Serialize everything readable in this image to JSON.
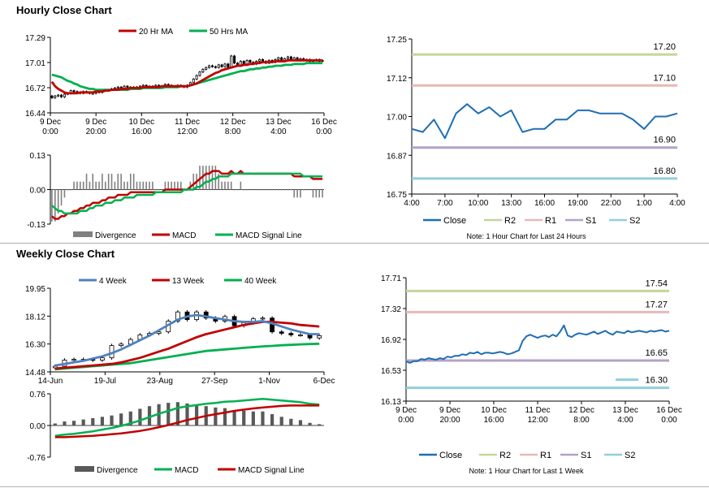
{
  "titles": {
    "hourly": "Hourly Close Chart",
    "weekly": "Weekly Close Chart"
  },
  "colors": {
    "ma20": "#c00000",
    "ma50": "#00b050",
    "close": "#1f6eb4",
    "r2": "#c3d69b",
    "r1": "#e6b9b8",
    "s1": "#b3a2c7",
    "s2": "#93cddd",
    "week4": "#4f81bd",
    "week13": "#c00000",
    "week40": "#00b050",
    "divergence": "#808080",
    "divergence_dark": "#595959",
    "macd_red": "#c00000",
    "macd_green": "#00b050"
  },
  "chart_data": [
    {
      "id": "hourly_candles",
      "type": "candlestick",
      "title": "Hourly Close Chart",
      "ylim": [
        16.44,
        17.29
      ],
      "yticks": [
        "17.29",
        "17.01",
        "16.72",
        "16.44"
      ],
      "xticks": [
        "9 Dec\n0:00",
        "9 Dec\n20:00",
        "10 Dec\n16:00",
        "11 Dec\n12:00",
        "12 Dec\n8:00",
        "13 Dec\n4:00",
        "16 Dec\n0:00"
      ],
      "legend": [
        "20 Hr MA",
        "50 Hrs MA"
      ],
      "closes": [
        16.61,
        16.63,
        16.64,
        16.62,
        16.65,
        16.66,
        16.69,
        16.68,
        16.67,
        16.66,
        16.68,
        16.67,
        16.66,
        16.66,
        16.68,
        16.67,
        16.69,
        16.7,
        16.7,
        16.71,
        16.72,
        16.73,
        16.72,
        16.74,
        16.73,
        16.72,
        16.73,
        16.72,
        16.74,
        16.75,
        16.74,
        16.73,
        16.74,
        16.75,
        16.73,
        16.74,
        16.76,
        16.75,
        16.74,
        16.73,
        16.75,
        16.74,
        16.73,
        16.75,
        16.78,
        16.82,
        16.86,
        16.9,
        16.93,
        16.95,
        16.97,
        16.96,
        16.95,
        16.98,
        16.96,
        16.99,
        16.95,
        17.08,
        17.0,
        16.97,
        17.02,
        16.98,
        17.03,
        17.01,
        16.99,
        17.02,
        17.04,
        17.02,
        17.0,
        17.03,
        17.01,
        17.04,
        17.06,
        17.03,
        17.05,
        17.07,
        17.04,
        17.06,
        17.03,
        17.05,
        17.03,
        17.04,
        17.02,
        17.03,
        17.04,
        17.02,
        17.03
      ],
      "ma20": [
        16.79,
        16.74,
        16.71,
        16.69,
        16.67,
        16.66,
        16.66,
        16.66,
        16.66,
        16.67,
        16.67,
        16.67,
        16.67,
        16.67,
        16.68,
        16.68,
        16.68,
        16.69,
        16.69,
        16.7,
        16.7,
        16.7,
        16.71,
        16.71,
        16.71,
        16.72,
        16.72,
        16.72,
        16.72,
        16.73,
        16.73,
        16.73,
        16.73,
        16.73,
        16.73,
        16.74,
        16.74,
        16.74,
        16.74,
        16.74,
        16.74,
        16.74,
        16.74,
        16.74,
        16.75,
        16.76,
        16.77,
        16.79,
        16.81,
        16.83,
        16.85,
        16.87,
        16.89,
        16.9,
        16.92,
        16.93,
        16.94,
        16.95,
        16.96,
        16.97,
        16.97,
        16.98,
        16.98,
        16.99,
        16.99,
        17.0,
        17.0,
        17.01,
        17.01,
        17.01,
        17.01,
        17.02,
        17.02,
        17.02,
        17.02,
        17.03,
        17.03,
        17.03,
        17.03,
        17.03,
        17.03,
        17.03,
        17.03,
        17.03,
        17.03,
        17.03,
        17.03
      ],
      "ma50": [
        16.87,
        16.86,
        16.85,
        16.84,
        16.82,
        16.8,
        16.79,
        16.77,
        16.76,
        16.74,
        16.73,
        16.72,
        16.71,
        16.71,
        16.7,
        16.7,
        16.7,
        16.7,
        16.7,
        16.7,
        16.7,
        16.7,
        16.7,
        16.7,
        16.7,
        16.71,
        16.71,
        16.71,
        16.71,
        16.72,
        16.72,
        16.72,
        16.72,
        16.72,
        16.72,
        16.72,
        16.73,
        16.73,
        16.73,
        16.73,
        16.73,
        16.74,
        16.74,
        16.74,
        16.75,
        16.76,
        16.77,
        16.78,
        16.79,
        16.8,
        16.81,
        16.82,
        16.83,
        16.84,
        16.85,
        16.86,
        16.87,
        16.88,
        16.89,
        16.9,
        16.91,
        16.91,
        16.92,
        16.93,
        16.93,
        16.94,
        16.94,
        16.95,
        16.95,
        16.96,
        16.96,
        16.97,
        16.97,
        16.97,
        16.98,
        16.98,
        16.98,
        16.99,
        16.99,
        16.99,
        16.99,
        17.0,
        17.0,
        17.0,
        17.0,
        17.0,
        17.0
      ]
    },
    {
      "id": "hourly_macd",
      "type": "macd",
      "ylim": [
        -0.13,
        0.13
      ],
      "yticks": [
        "0.13",
        "0.00",
        "-0.13"
      ],
      "legend": [
        "Divergence",
        "MACD",
        "MACD Signal Line"
      ],
      "macd": [
        -0.1,
        -0.11,
        -0.11,
        -0.1,
        -0.1,
        -0.09,
        -0.09,
        -0.08,
        -0.08,
        -0.07,
        -0.07,
        -0.06,
        -0.06,
        -0.05,
        -0.05,
        -0.05,
        -0.04,
        -0.04,
        -0.03,
        -0.03,
        -0.03,
        -0.02,
        -0.02,
        -0.02,
        -0.02,
        -0.01,
        -0.01,
        -0.01,
        -0.01,
        -0.01,
        -0.01,
        -0.01,
        -0.01,
        -0.01,
        -0.01,
        -0.01,
        0.0,
        0.0,
        0.0,
        0.0,
        0.0,
        0.0,
        0.0,
        0.0,
        0.01,
        0.02,
        0.03,
        0.04,
        0.05,
        0.06,
        0.06,
        0.07,
        0.07,
        0.07,
        0.06,
        0.06,
        0.06,
        0.07,
        0.06,
        0.06,
        0.07,
        0.06,
        0.06,
        0.06,
        0.06,
        0.06,
        0.06,
        0.06,
        0.06,
        0.06,
        0.06,
        0.06,
        0.06,
        0.06,
        0.06,
        0.06,
        0.06,
        0.05,
        0.05,
        0.05,
        0.05,
        0.05,
        0.05,
        0.04,
        0.04,
        0.04,
        0.04
      ],
      "signal": [
        -0.06,
        -0.07,
        -0.08,
        -0.08,
        -0.09,
        -0.09,
        -0.09,
        -0.09,
        -0.09,
        -0.08,
        -0.08,
        -0.08,
        -0.07,
        -0.07,
        -0.06,
        -0.06,
        -0.06,
        -0.05,
        -0.05,
        -0.05,
        -0.04,
        -0.04,
        -0.04,
        -0.03,
        -0.03,
        -0.03,
        -0.03,
        -0.02,
        -0.02,
        -0.02,
        -0.02,
        -0.02,
        -0.02,
        -0.01,
        -0.01,
        -0.01,
        -0.01,
        -0.01,
        -0.01,
        -0.01,
        -0.01,
        -0.01,
        0.0,
        0.0,
        0.0,
        0.0,
        0.01,
        0.01,
        0.02,
        0.03,
        0.03,
        0.04,
        0.04,
        0.05,
        0.05,
        0.05,
        0.05,
        0.06,
        0.06,
        0.06,
        0.06,
        0.06,
        0.06,
        0.06,
        0.06,
        0.06,
        0.06,
        0.06,
        0.06,
        0.06,
        0.06,
        0.06,
        0.06,
        0.06,
        0.06,
        0.06,
        0.06,
        0.06,
        0.06,
        0.06,
        0.05,
        0.05,
        0.05,
        0.05,
        0.05,
        0.05,
        0.05
      ]
    },
    {
      "id": "hourly_line",
      "type": "line",
      "ylim": [
        16.75,
        17.25
      ],
      "yticks": [
        "17.25",
        "17.12",
        "17.00",
        "16.87",
        "16.75"
      ],
      "xticks": [
        "4:00",
        "7:00",
        "10:00",
        "13:00",
        "16:00",
        "19:00",
        "22:00",
        "1:00",
        "4:00"
      ],
      "levels": {
        "R2": 17.2,
        "R1": 17.1,
        "S1": 16.9,
        "S2": 16.8
      },
      "level_labels": [
        "17.20",
        "17.10",
        "16.90",
        "16.80"
      ],
      "legend": [
        "Close",
        "R2",
        "R1",
        "S1",
        "S2"
      ],
      "note": "Note: 1 Hour Chart for Last 24 Hours",
      "values": [
        16.96,
        16.95,
        16.99,
        16.93,
        17.01,
        17.04,
        17.01,
        17.03,
        17.0,
        17.02,
        16.95,
        16.96,
        16.96,
        16.99,
        16.99,
        17.02,
        17.02,
        17.01,
        17.01,
        17.01,
        16.99,
        16.96,
        17.0,
        17.0,
        17.01
      ]
    },
    {
      "id": "weekly_candles",
      "type": "candlestick",
      "title": "Weekly Close Chart",
      "ylim": [
        14.48,
        19.95
      ],
      "yticks": [
        "19.95",
        "18.12",
        "16.30",
        "14.48"
      ],
      "xticks": [
        "14-Jun",
        "19-Jul",
        "23-Aug",
        "27-Sep",
        "1-Nov",
        "6-Dec"
      ],
      "legend": [
        "4 Week",
        "13 Week",
        "40 Week"
      ],
      "closes": [
        14.85,
        15.25,
        15.3,
        15.3,
        15.25,
        15.4,
        16.2,
        16.3,
        16.6,
        16.9,
        17.0,
        17.1,
        17.8,
        18.4,
        17.9,
        18.4,
        18.0,
        17.8,
        18.1,
        17.5,
        17.7,
        17.95,
        18.0,
        17.1,
        17.0,
        16.9,
        16.9,
        16.7,
        16.85
      ],
      "week4": [
        14.9,
        15.0,
        15.1,
        15.2,
        15.35,
        15.5,
        15.7,
        15.95,
        16.25,
        16.55,
        16.85,
        17.2,
        17.55,
        17.9,
        18.1,
        18.2,
        18.1,
        18.0,
        17.9,
        17.8,
        17.75,
        17.75,
        17.8,
        17.65,
        17.45,
        17.25,
        17.1,
        16.95,
        16.95
      ],
      "week13": [
        14.7,
        14.75,
        14.8,
        14.85,
        14.9,
        14.95,
        15.0,
        15.1,
        15.25,
        15.4,
        15.6,
        15.8,
        16.0,
        16.25,
        16.5,
        16.75,
        16.95,
        17.1,
        17.25,
        17.4,
        17.55,
        17.65,
        17.75,
        17.75,
        17.7,
        17.65,
        17.55,
        17.5,
        17.45
      ],
      "week40": [
        14.65,
        14.7,
        14.75,
        14.8,
        14.85,
        14.9,
        14.95,
        15.0,
        15.05,
        15.15,
        15.25,
        15.35,
        15.45,
        15.55,
        15.65,
        15.75,
        15.85,
        15.9,
        15.95,
        16.0,
        16.05,
        16.1,
        16.15,
        16.18,
        16.22,
        16.25,
        16.28,
        16.3,
        16.32
      ]
    },
    {
      "id": "weekly_macd",
      "type": "macd",
      "ylim": [
        -0.76,
        0.76
      ],
      "yticks": [
        "0.76",
        "0.00",
        "-0.76"
      ],
      "legend": [
        "Divergence",
        "MACD",
        "MACD Signal Line"
      ],
      "macd": [
        -0.25,
        -0.22,
        -0.2,
        -0.17,
        -0.14,
        -0.1,
        -0.06,
        -0.01,
        0.05,
        0.12,
        0.2,
        0.28,
        0.35,
        0.42,
        0.46,
        0.49,
        0.52,
        0.54,
        0.57,
        0.58,
        0.6,
        0.62,
        0.64,
        0.62,
        0.6,
        0.58,
        0.56,
        0.52,
        0.5
      ],
      "signal": [
        -0.28,
        -0.28,
        -0.27,
        -0.26,
        -0.25,
        -0.23,
        -0.21,
        -0.19,
        -0.16,
        -0.13,
        -0.09,
        -0.04,
        0.01,
        0.07,
        0.13,
        0.18,
        0.23,
        0.27,
        0.31,
        0.35,
        0.38,
        0.41,
        0.43,
        0.45,
        0.47,
        0.48,
        0.48,
        0.48,
        0.48
      ]
    },
    {
      "id": "weekly_line",
      "type": "line",
      "ylim": [
        16.13,
        17.71
      ],
      "yticks": [
        "17.71",
        "17.32",
        "16.92",
        "16.53",
        "16.13"
      ],
      "xticks": [
        "9 Dec\n0:00",
        "9 Dec\n20:00",
        "10 Dec\n16:00",
        "11 Dec\n12:00",
        "12 Dec\n8:00",
        "13 Dec\n4:00",
        "16 Dec\n0:00"
      ],
      "levels": {
        "R2": 17.54,
        "R1": 17.27,
        "S1": 16.65,
        "S2": 16.3
      },
      "level_labels": [
        "17.54",
        "17.27",
        "16.65",
        "16.30"
      ],
      "legend": [
        "Close",
        "R2",
        "R1",
        "S1",
        "S2"
      ],
      "note": "Note: 1 Hour Chart for Last 1 Week",
      "values": [
        16.64,
        16.62,
        16.64,
        16.64,
        16.67,
        16.66,
        16.68,
        16.67,
        16.66,
        16.68,
        16.67,
        16.7,
        16.69,
        16.71,
        16.71,
        16.73,
        16.72,
        16.75,
        16.74,
        16.76,
        16.73,
        16.75,
        16.75,
        16.74,
        16.75,
        16.76,
        16.75,
        16.73,
        16.74,
        16.76,
        16.78,
        16.9,
        16.96,
        16.98,
        16.96,
        16.94,
        16.96,
        16.97,
        16.95,
        16.98,
        16.96,
        17.02,
        17.1,
        16.97,
        16.95,
        16.98,
        17.0,
        16.99,
        16.98,
        17.0,
        17.02,
        16.99,
        17.01,
        17.03,
        17.0,
        16.98,
        17.02,
        17.01,
        17.0,
        17.03,
        17.01,
        17.02,
        17.03,
        17.02,
        17.01,
        17.03,
        17.02,
        17.03,
        17.04,
        17.02,
        17.03
      ]
    }
  ]
}
